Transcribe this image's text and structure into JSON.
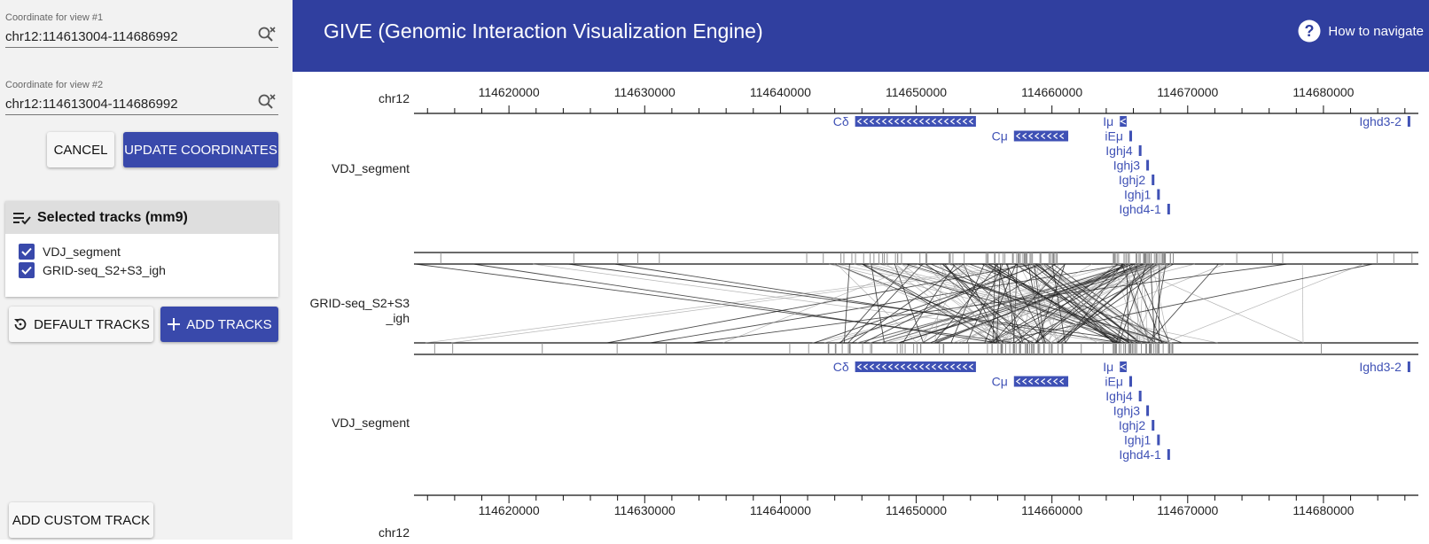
{
  "sidebar": {
    "view1": {
      "label": "Coordinate for view #1",
      "value": "chr12:114613004-114686992"
    },
    "view2": {
      "label": "Coordinate for view #2",
      "value": "chr12:114613004-114686992"
    },
    "cancel_label": "CANCEL",
    "update_label": "UPDATE COORDINATES",
    "selected_tracks": {
      "title": "Selected tracks (mm9)",
      "items": [
        {
          "label": "VDJ_segment",
          "checked": true
        },
        {
          "label": "GRID-seq_S2+S3_igh",
          "checked": true
        }
      ]
    },
    "default_tracks_label": "DEFAULT TRACKS",
    "add_tracks_label": "ADD TRACKS",
    "add_custom_label": "ADD CUSTOM TRACK"
  },
  "header": {
    "title": "GIVE (Genomic Interaction Visualization Engine)",
    "help_label": "How to navigate",
    "help_icon": "help-circle-icon"
  },
  "browser": {
    "chromosome": "chr12",
    "range": [
      114613004,
      114686992
    ],
    "ticks": [
      114620000,
      114630000,
      114640000,
      114650000,
      114660000,
      114670000,
      114680000
    ],
    "track_labels": {
      "vdj_top": "VDJ_segment",
      "interaction_line1": "GRID-seq_S2+S3",
      "interaction_line2": "_igh",
      "vdj_bottom": "VDJ_segment"
    },
    "genes": [
      {
        "name": "Cδ",
        "start": 114645500,
        "end": 114654400,
        "row": 0,
        "strand": "-"
      },
      {
        "name": "Iμ",
        "start": 114665000,
        "end": 114665500,
        "row": 0,
        "strand": "-"
      },
      {
        "name": "Ighd3-2",
        "start": 114686200,
        "end": 114686350,
        "row": 0,
        "strand": ""
      },
      {
        "name": "Cμ",
        "start": 114657200,
        "end": 114661200,
        "row": 1,
        "strand": "-"
      },
      {
        "name": "iEμ",
        "start": 114665700,
        "end": 114665900,
        "row": 1,
        "strand": ""
      },
      {
        "name": "Ighj4",
        "start": 114666400,
        "end": 114666550,
        "row": 2,
        "strand": ""
      },
      {
        "name": "Ighj3",
        "start": 114666950,
        "end": 114667100,
        "row": 3,
        "strand": ""
      },
      {
        "name": "Ighj2",
        "start": 114667350,
        "end": 114667500,
        "row": 4,
        "strand": ""
      },
      {
        "name": "Ighj1",
        "start": 114667750,
        "end": 114667900,
        "row": 5,
        "strand": ""
      },
      {
        "name": "Ighd4-1",
        "start": 114668500,
        "end": 114668650,
        "row": 6,
        "strand": ""
      }
    ],
    "colors": {
      "gene": "#3f51b5",
      "header": "#303f9f",
      "primary": "#3949ab"
    }
  }
}
